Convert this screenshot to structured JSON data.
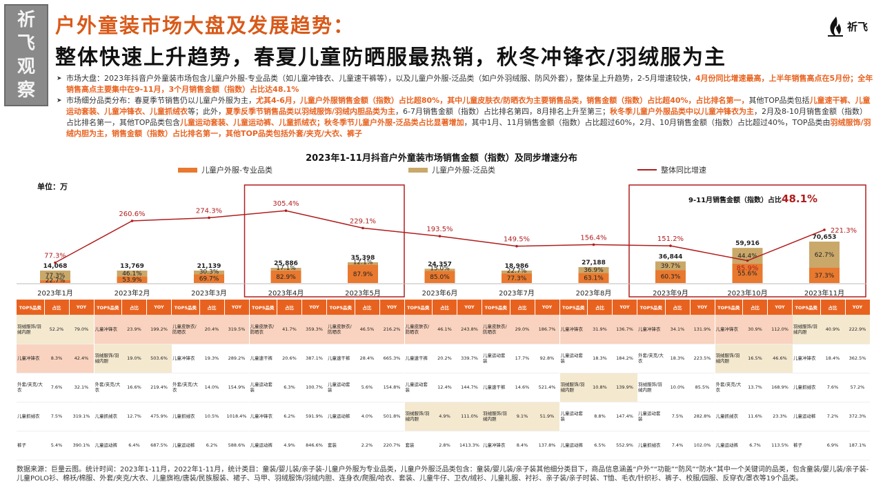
{
  "stamp": {
    "chars": [
      "祈",
      "飞",
      "观",
      "察"
    ]
  },
  "logo": {
    "text": "祈飞"
  },
  "header": {
    "title": "户外童装市场大盘及发展趋势：",
    "subtitle": "整体快速上升趋势，春夏儿童防晒服最热销，秋冬冲锋衣/羽绒服为主"
  },
  "bullets": [
    [
      {
        "t": "市场大盘：2023年抖音户外童装市场包含儿童户外服-专业品类（如儿童冲锋衣、儿童速干裤等），以及儿童户外服-泛品类（如户外羽绒服、防风外套），整体呈上升趋势，2-5月增速较快，",
        "h": false
      },
      {
        "t": "4月份同比增速最高，上半年销售高点在5月份；全年销售高点主要集中在9-11月，3个月销售金额（指数）占比达48.1%",
        "h": true
      }
    ],
    [
      {
        "t": "市场细分品类分布：春夏季节销售仍以儿童户外服为主，",
        "h": false
      },
      {
        "t": "尤其4-6月，儿童户外服销售金额（指数）占比超80%，其中儿童皮肤衣/防晒衣为主要销售品类，销售金额（指数）占比超40%，占比排名第一，",
        "h": true
      },
      {
        "t": "其他TOP品类包括",
        "h": false
      },
      {
        "t": "儿童速干裤、儿童运动套装、儿童冲锋衣、儿童抓绒衣",
        "h": true
      },
      {
        "t": "等；此外，",
        "h": false
      },
      {
        "t": "夏季反季节销售品类以羽绒服饰/羽绒内胆品类为主",
        "h": true
      },
      {
        "t": "，6-7月销售金额（指数）占比排名第四，8月排名上升至第三；",
        "h": false
      },
      {
        "t": "秋冬季儿童户外服品类中以儿童冲锋衣为主",
        "h": true
      },
      {
        "t": "，2月及8-10月销售金额（指数）占比排名第一，其他TOP品类包含",
        "h": false
      },
      {
        "t": "儿童运动套装、儿童运动裤、儿童抓绒衣；秋冬季节儿童户外服-泛品类占比显著增加",
        "h": true
      },
      {
        "t": "，其中1月、11月销售金额（指数）占比超过60%，2月、10月销售金额（指数）占比超过40%，TOP品类由",
        "h": false
      },
      {
        "t": "羽绒服饰/羽绒内胆为主，销售金额（指数）占比排名第一，其他TOP品类包括外套/夹克/大衣、裤子",
        "h": true
      }
    ]
  ],
  "chart_data": {
    "type": "bar",
    "title": "2023年1-11月抖音户外童装市场销售金额（指数）及同步增速分布",
    "unit": "单位：万",
    "categories": [
      "2023年1月",
      "2023年2月",
      "2023年3月",
      "2023年4月",
      "2023年5月",
      "2023年6月",
      "2023年7月",
      "2023年8月",
      "2023年9月",
      "2023年10月",
      "2023年11月"
    ],
    "totals": [
      14068,
      13769,
      21139,
      25886,
      35398,
      24357,
      18986,
      27188,
      36844,
      59916,
      70653
    ],
    "total_labels": [
      "14,068",
      "13,769",
      "21,139",
      "25,886",
      "35,398",
      "24,357",
      "18,986",
      "27,188",
      "36,844",
      "59,916",
      "70,653"
    ],
    "series": [
      {
        "name": "儿童户外服-专业品类",
        "type": "bar-stacked",
        "color": "#e8792f",
        "values": [
          22.7,
          53.9,
          69.7,
          82.9,
          87.9,
          85.0,
          77.3,
          63.1,
          60.3,
          55.6,
          37.3
        ],
        "labels": [
          "22.7%",
          "53.9%",
          "69.7%",
          "82.9%",
          "87.9%",
          "85.0%",
          "77.3%",
          "63.1%",
          "60.3%",
          "55.6%",
          "37.3%"
        ]
      },
      {
        "name": "儿童户外服-泛品类",
        "type": "bar-stacked",
        "color": "#c9a86a",
        "values": [
          77.3,
          46.1,
          30.3,
          17.1,
          12.1,
          15.0,
          22.7,
          36.9,
          39.7,
          44.4,
          62.7
        ],
        "labels": [
          "77.3%",
          "46.1%",
          "30.3%",
          "17.1%",
          "12.1%",
          "15.0%",
          "22.7%",
          "36.9%",
          "39.7%",
          "44.4%",
          "62.7%"
        ]
      },
      {
        "name": "整体同比增速",
        "type": "line",
        "color": "#b01c1c",
        "values": [
          77.3,
          260.6,
          274.3,
          305.4,
          229.1,
          193.5,
          149.5,
          156.4,
          151.2,
          85.9,
          221.3
        ],
        "labels": [
          "77.3%",
          "260.6%",
          "274.3%",
          "305.4%",
          "229.1%",
          "193.5%",
          "149.5%",
          "156.4%",
          "151.2%",
          "85.9%",
          "221.3%"
        ]
      }
    ],
    "annotation": {
      "text": "9-11月销售金额（指数）占比",
      "value": "48.1%"
    },
    "highlight_groups": [
      [
        3,
        4
      ],
      [
        8,
        9,
        10
      ]
    ],
    "legend": "top-center",
    "grid": false
  },
  "tables": {
    "headers": [
      "TOP5品类",
      "占比",
      "YOY"
    ],
    "months": [
      {
        "rows": [
          [
            "羽绒服饰/羽绒内胆",
            "52.2%",
            "79.0%",
            "bg2"
          ],
          [
            "儿童冲锋衣",
            "8.3%",
            "42.4%",
            "bg1"
          ],
          [
            "外套/夹克/大衣",
            "7.6%",
            "32.1%",
            ""
          ],
          [
            "儿童抓绒衣",
            "7.5%",
            "319.1%",
            ""
          ],
          [
            "裤子",
            "5.4%",
            "390.1%",
            ""
          ]
        ]
      },
      {
        "rows": [
          [
            "儿童冲锋衣",
            "23.9%",
            "199.2%",
            "bg1"
          ],
          [
            "羽绒服饰/羽绒内胆",
            "19.0%",
            "503.6%",
            "bg2"
          ],
          [
            "外套/夹克/大衣",
            "16.6%",
            "219.4%",
            ""
          ],
          [
            "儿童抓绒衣",
            "12.7%",
            "475.9%",
            ""
          ],
          [
            "儿童运动裤",
            "6.4%",
            "687.5%",
            ""
          ]
        ]
      },
      {
        "rows": [
          [
            "儿童皮肤衣/防晒衣",
            "20.4%",
            "319.5%",
            "bg1"
          ],
          [
            "儿童冲锋衣",
            "19.3%",
            "289.2%",
            ""
          ],
          [
            "外套/夹克/大衣",
            "14.0%",
            "154.9%",
            ""
          ],
          [
            "儿童抓绒衣",
            "10.5%",
            "1018.4%",
            ""
          ],
          [
            "儿童运动裤",
            "6.2%",
            "588.6%",
            ""
          ]
        ]
      },
      {
        "rows": [
          [
            "儿童皮肤衣/防晒衣",
            "41.7%",
            "359.3%",
            "bg1"
          ],
          [
            "儿童速干裤",
            "20.6%",
            "387.1%",
            ""
          ],
          [
            "儿童运动套装",
            "6.3%",
            "100.7%",
            ""
          ],
          [
            "儿童冲锋衣",
            "6.2%",
            "591.9%",
            ""
          ],
          [
            "儿童运动裤",
            "4.9%",
            "846.6%",
            ""
          ]
        ]
      },
      {
        "rows": [
          [
            "儿童皮肤衣/防晒衣",
            "46.5%",
            "216.2%",
            "bg1"
          ],
          [
            "儿童速干裤",
            "28.4%",
            "665.3%",
            ""
          ],
          [
            "儿童运动套装",
            "5.6%",
            "154.8%",
            ""
          ],
          [
            "儿童运动裤",
            "4.0%",
            "501.8%",
            ""
          ],
          [
            "套装",
            "2.2%",
            "220.7%",
            ""
          ]
        ]
      },
      {
        "rows": [
          [
            "儿童皮肤衣/防晒衣",
            "46.1%",
            "243.8%",
            "bg1"
          ],
          [
            "儿童速干裤",
            "20.2%",
            "339.7%",
            ""
          ],
          [
            "儿童运动套装",
            "12.4%",
            "144.7%",
            ""
          ],
          [
            "羽绒服饰/羽绒内胆",
            "4.9%",
            "111.0%",
            "bg2"
          ],
          [
            "套装",
            "2.8%",
            "1413.3%",
            ""
          ]
        ]
      },
      {
        "rows": [
          [
            "儿童皮肤衣/防晒衣",
            "29.0%",
            "186.7%",
            "bg1"
          ],
          [
            "儿童运动套装",
            "17.7%",
            "92.8%",
            ""
          ],
          [
            "儿童速干裤",
            "14.6%",
            "521.4%",
            ""
          ],
          [
            "羽绒服饰/羽绒内胆",
            "9.1%",
            "51.9%",
            "bg2"
          ],
          [
            "儿童冲锋衣",
            "8.4%",
            "137.8%",
            ""
          ]
        ]
      },
      {
        "rows": [
          [
            "儿童冲锋衣",
            "31.9%",
            "136.7%",
            "bg1"
          ],
          [
            "儿童运动套装",
            "18.3%",
            "184.2%",
            ""
          ],
          [
            "羽绒服饰/羽绒内胆",
            "10.8%",
            "139.9%",
            "bg2"
          ],
          [
            "儿童运动套装",
            "8.8%",
            "147.4%",
            ""
          ],
          [
            "儿童运动裤",
            "6.5%",
            "552.9%",
            ""
          ]
        ]
      },
      {
        "rows": [
          [
            "儿童冲锋衣",
            "34.1%",
            "131.9%",
            "bg1"
          ],
          [
            "外套/夹克/大衣",
            "18.3%",
            "223.5%",
            ""
          ],
          [
            "羽绒服饰/羽绒内胆",
            "10.0%",
            "85.5%",
            ""
          ],
          [
            "儿童运动套装",
            "7.5%",
            "282.8%",
            ""
          ],
          [
            "儿童抓绒衣",
            "7.4%",
            "102.0%",
            ""
          ]
        ]
      },
      {
        "rows": [
          [
            "儿童冲锋衣",
            "30.9%",
            "112.0%",
            "bg1"
          ],
          [
            "羽绒服饰/羽绒内胆",
            "16.5%",
            "46.6%",
            "bg2"
          ],
          [
            "外套/夹克/大衣",
            "13.7%",
            "168.9%",
            ""
          ],
          [
            "儿童抓绒衣",
            "11.6%",
            "23.3%",
            ""
          ],
          [
            "儿童运动裤",
            "6.7%",
            "113.5%",
            ""
          ]
        ]
      },
      {
        "rows": [
          [
            "羽绒服饰/羽绒内胆",
            "40.9%",
            "222.9%",
            "bg2"
          ],
          [
            "儿童冲锋衣",
            "18.4%",
            "362.5%",
            ""
          ],
          [
            "儿童抓绒衣",
            "7.6%",
            "57.2%",
            ""
          ],
          [
            "儿童运动裤",
            "7.2%",
            "372.3%",
            ""
          ],
          [
            "裤子",
            "6.9%",
            "187.1%",
            ""
          ]
        ]
      }
    ]
  },
  "footer": {
    "source": "数据来源：巨量云图。统计时间：2023年1-11月，2022年1-11月，统计类目：童装/婴儿装/亲子装-儿童户外服为专业品类，儿童户外服泛品类包含：童装/婴儿装/亲子装其他细分类目下，商品信息涵盖“户外”“功能”“防风”“防水”其中一个关键词的品类，包含童装/婴儿装/亲子装-儿童POLO衫、棉袄/棉服、外套/夹克/大衣、儿童旗袍/唐装/民族服装、裙子、马甲、羽绒服饰/羽绒内胆、连身衣/爬服/哈衣、套装、儿童牛仔、卫衣/绒衫、儿童礼服、衬衫、亲子装/亲子时装、T恤、毛衣/针织衫、裤子、校服/园服、反穿衣/罩衣等19个品类。"
  }
}
